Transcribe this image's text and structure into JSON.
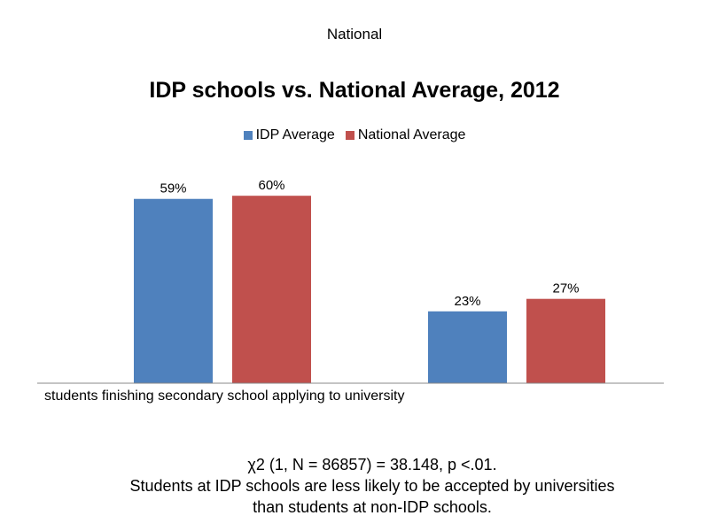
{
  "header": {
    "top_label": "National"
  },
  "footnote": {
    "stat": "χ2 (1, N = 86857) = 38.148, p <.01.",
    "conclusion_line1": "Students at IDP schools are less likely to be accepted by universities",
    "conclusion_line2": "than students at non-IDP schools."
  },
  "chart_data": {
    "type": "bar",
    "title": "IDP schools vs. National Average, 2012",
    "categories": [
      "students finishing secondary school applying to university",
      ""
    ],
    "series": [
      {
        "name": "IDP Average",
        "values": [
          59,
          23
        ],
        "labels": [
          "59%",
          "23%"
        ],
        "color": "#4f81bd"
      },
      {
        "name": "National Average",
        "values": [
          60,
          27
        ],
        "labels": [
          "60%",
          "27%"
        ],
        "color": "#c0504d"
      }
    ],
    "ylim": [
      0,
      100
    ],
    "grid": false,
    "legend": "top",
    "axis_color": "#898989"
  }
}
